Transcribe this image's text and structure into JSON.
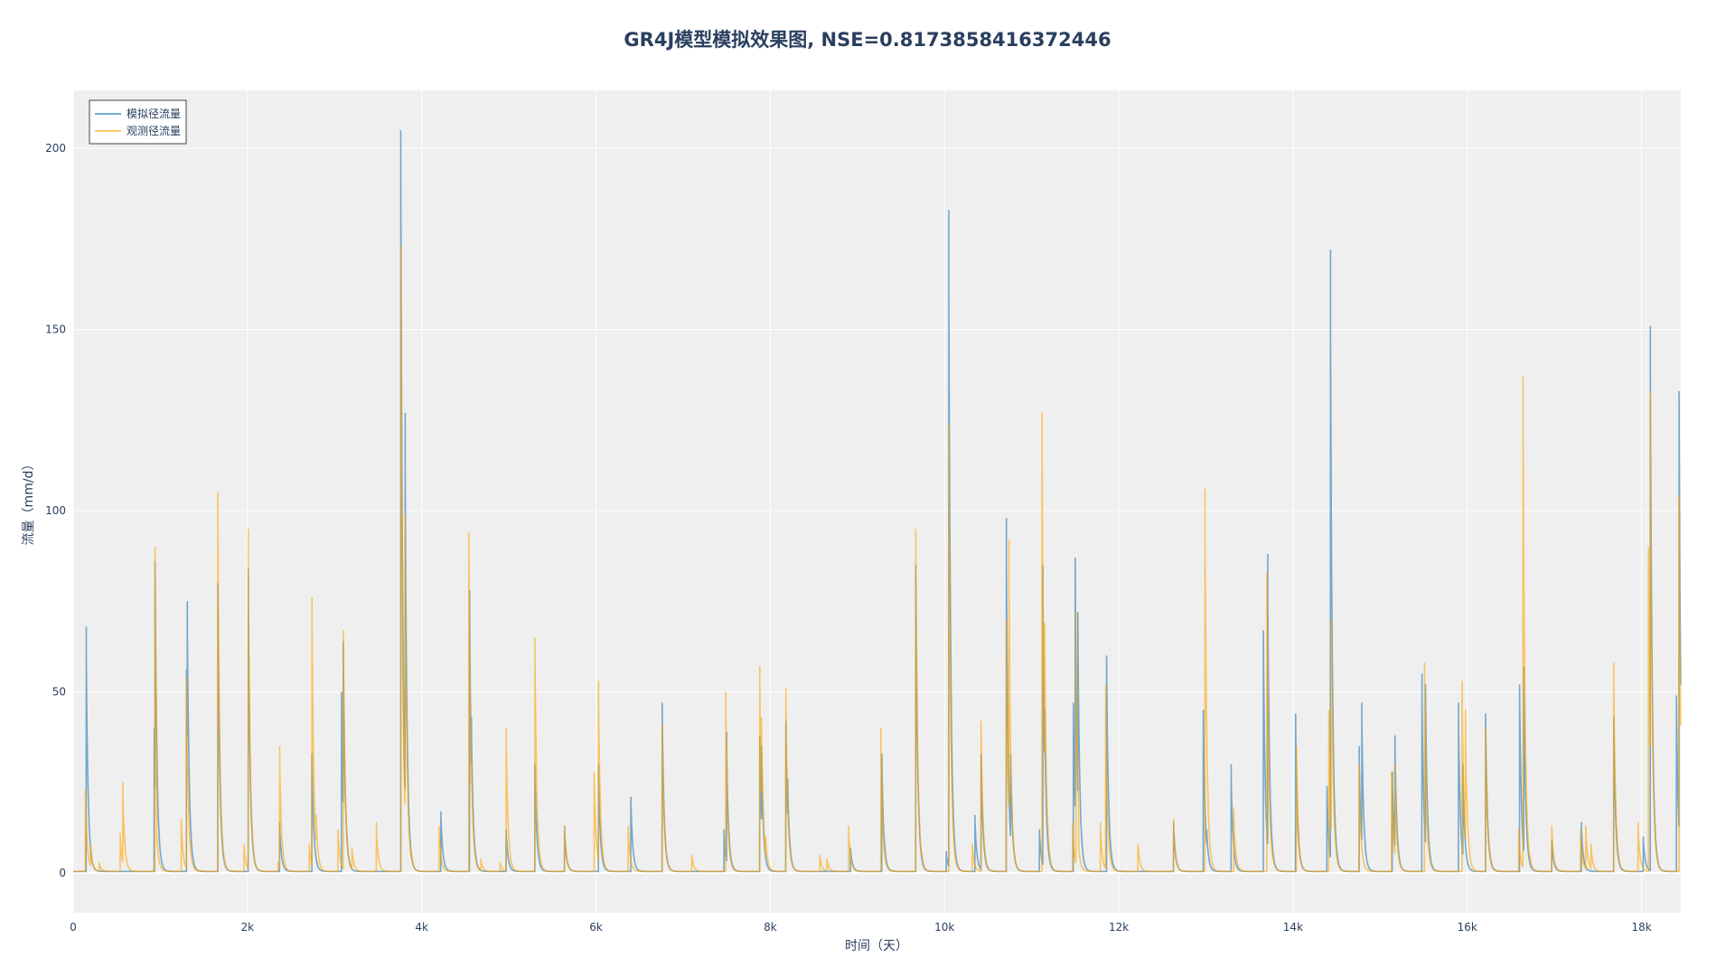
{
  "chart_data": {
    "type": "line",
    "title": "GR4J模型模拟效果图, NSE=0.8173858416372446",
    "xlabel": "时间（天）",
    "ylabel": "流量（mm/d）",
    "xlim": [
      0,
      18450
    ],
    "ylim": [
      -11,
      216
    ],
    "x_ticks": [
      0,
      2000,
      4000,
      6000,
      8000,
      10000,
      12000,
      14000,
      16000,
      18000
    ],
    "x_tick_labels": [
      "0",
      "2k",
      "4k",
      "6k",
      "8k",
      "10k",
      "12k",
      "14k",
      "16k",
      "18k"
    ],
    "y_ticks": [
      0,
      50,
      100,
      150,
      200
    ],
    "y_tick_labels": [
      "0",
      "50",
      "100",
      "150",
      "200"
    ],
    "grid": true,
    "background": "#efefef",
    "legend_position": "top-left",
    "series": [
      {
        "name": "模拟径流量",
        "color": "#1f77b4",
        "peaks": [
          [
            150,
            68
          ],
          [
            930,
            40
          ],
          [
            940,
            86
          ],
          [
            1300,
            56
          ],
          [
            1310,
            75
          ],
          [
            1660,
            80
          ],
          [
            2010,
            84
          ],
          [
            2030,
            33
          ],
          [
            2370,
            14
          ],
          [
            2740,
            33
          ],
          [
            3080,
            50
          ],
          [
            3100,
            64
          ],
          [
            3760,
            205
          ],
          [
            3790,
            52
          ],
          [
            3810,
            127
          ],
          [
            4220,
            17
          ],
          [
            4550,
            78
          ],
          [
            4570,
            43
          ],
          [
            4970,
            12
          ],
          [
            5300,
            30
          ],
          [
            5640,
            13
          ],
          [
            6030,
            30
          ],
          [
            6400,
            21
          ],
          [
            6760,
            47
          ],
          [
            7470,
            12
          ],
          [
            7500,
            39
          ],
          [
            7880,
            38
          ],
          [
            7900,
            35
          ],
          [
            8180,
            42
          ],
          [
            8200,
            26
          ],
          [
            8920,
            7
          ],
          [
            9280,
            33
          ],
          [
            9670,
            85
          ],
          [
            10020,
            6
          ],
          [
            10050,
            183
          ],
          [
            10350,
            16
          ],
          [
            10420,
            33
          ],
          [
            10710,
            98
          ],
          [
            10760,
            33
          ],
          [
            11090,
            12
          ],
          [
            11130,
            85
          ],
          [
            11150,
            45
          ],
          [
            11480,
            47
          ],
          [
            11500,
            87
          ],
          [
            11530,
            72
          ],
          [
            11860,
            60
          ],
          [
            12630,
            14
          ],
          [
            12970,
            45
          ],
          [
            13010,
            12
          ],
          [
            13290,
            30
          ],
          [
            13660,
            67
          ],
          [
            13710,
            88
          ],
          [
            14030,
            44
          ],
          [
            14390,
            24
          ],
          [
            14430,
            172
          ],
          [
            14760,
            35
          ],
          [
            14790,
            47
          ],
          [
            15140,
            28
          ],
          [
            15170,
            38
          ],
          [
            15480,
            55
          ],
          [
            15520,
            52
          ],
          [
            15900,
            47
          ],
          [
            15950,
            30
          ],
          [
            16210,
            44
          ],
          [
            16260,
            6
          ],
          [
            16600,
            52
          ],
          [
            16650,
            57
          ],
          [
            16970,
            9
          ],
          [
            17310,
            14
          ],
          [
            17680,
            43
          ],
          [
            18020,
            10
          ],
          [
            18100,
            151
          ],
          [
            18400,
            49
          ],
          [
            18430,
            133
          ]
        ]
      },
      {
        "name": "观测径流量",
        "color": "#ffa500",
        "peaks": [
          [
            140,
            23
          ],
          [
            200,
            8
          ],
          [
            300,
            3
          ],
          [
            540,
            11
          ],
          [
            570,
            25
          ],
          [
            940,
            90
          ],
          [
            960,
            12
          ],
          [
            1240,
            15
          ],
          [
            1300,
            54
          ],
          [
            1660,
            105
          ],
          [
            1960,
            8
          ],
          [
            2010,
            95
          ],
          [
            2350,
            3
          ],
          [
            2370,
            35
          ],
          [
            2710,
            8
          ],
          [
            2740,
            76
          ],
          [
            2790,
            16
          ],
          [
            3040,
            12
          ],
          [
            3100,
            67
          ],
          [
            3200,
            7
          ],
          [
            3480,
            14
          ],
          [
            3760,
            173
          ],
          [
            3780,
            73
          ],
          [
            3810,
            99
          ],
          [
            3880,
            6
          ],
          [
            4200,
            13
          ],
          [
            4540,
            94
          ],
          [
            4570,
            32
          ],
          [
            4680,
            4
          ],
          [
            4900,
            3
          ],
          [
            4970,
            40
          ],
          [
            5300,
            65
          ],
          [
            5640,
            13
          ],
          [
            5980,
            28
          ],
          [
            6030,
            53
          ],
          [
            6370,
            13
          ],
          [
            6760,
            41
          ],
          [
            7100,
            5
          ],
          [
            7490,
            50
          ],
          [
            7520,
            12
          ],
          [
            7880,
            57
          ],
          [
            7900,
            43
          ],
          [
            7950,
            10
          ],
          [
            8180,
            51
          ],
          [
            8570,
            5
          ],
          [
            8650,
            4
          ],
          [
            8900,
            13
          ],
          [
            9270,
            40
          ],
          [
            9670,
            95
          ],
          [
            9740,
            6
          ],
          [
            10050,
            124
          ],
          [
            10320,
            8
          ],
          [
            10420,
            42
          ],
          [
            10710,
            70
          ],
          [
            10740,
            92
          ],
          [
            11120,
            127
          ],
          [
            11150,
            69
          ],
          [
            11470,
            14
          ],
          [
            11510,
            72
          ],
          [
            11540,
            8
          ],
          [
            11790,
            14
          ],
          [
            11850,
            52
          ],
          [
            12220,
            8
          ],
          [
            12630,
            15
          ],
          [
            12990,
            106
          ],
          [
            13040,
            11
          ],
          [
            13320,
            18
          ],
          [
            13700,
            83
          ],
          [
            13770,
            5
          ],
          [
            14040,
            35
          ],
          [
            14410,
            45
          ],
          [
            14440,
            70
          ],
          [
            14760,
            30
          ],
          [
            15130,
            28
          ],
          [
            15170,
            30
          ],
          [
            15510,
            58
          ],
          [
            15940,
            53
          ],
          [
            15980,
            45
          ],
          [
            16210,
            40
          ],
          [
            16590,
            12
          ],
          [
            16640,
            137
          ],
          [
            16720,
            5
          ],
          [
            16970,
            13
          ],
          [
            17300,
            12
          ],
          [
            17360,
            13
          ],
          [
            17420,
            8
          ],
          [
            17680,
            58
          ],
          [
            17960,
            14
          ],
          [
            18080,
            90
          ],
          [
            18100,
            133
          ],
          [
            18430,
            104
          ]
        ]
      }
    ]
  }
}
